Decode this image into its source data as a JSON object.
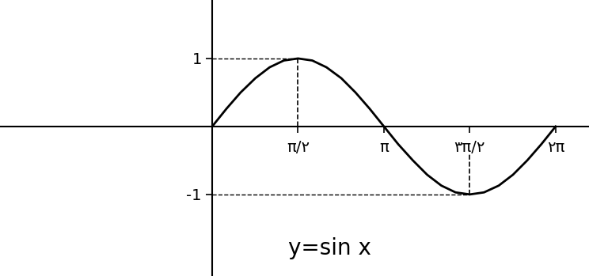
{
  "chart_data": {
    "type": "line",
    "annotation": "y=sin x",
    "x": [
      0,
      0.26,
      0.52,
      0.79,
      1.05,
      1.31,
      1.57,
      1.83,
      2.09,
      2.36,
      2.62,
      2.88,
      3.14,
      3.4,
      3.67,
      3.93,
      4.19,
      4.45,
      4.71,
      4.97,
      5.24,
      5.5,
      5.76,
      6.02,
      6.28
    ],
    "values": [
      0,
      0.26,
      0.5,
      0.71,
      0.87,
      0.97,
      1,
      0.97,
      0.87,
      0.71,
      0.5,
      0.26,
      0,
      -0.26,
      -0.5,
      -0.71,
      -0.87,
      -0.97,
      -1,
      -0.97,
      -0.87,
      -0.71,
      -0.5,
      -0.26,
      0
    ],
    "color": "#000000",
    "xlim": [
      -3.88,
      6.89
    ],
    "ylim": [
      -2.2,
      1.86
    ],
    "xticks": [
      {
        "value": 1.57,
        "label": "π/۲"
      },
      {
        "value": 3.14,
        "label": "π"
      },
      {
        "value": 4.71,
        "label": "۳π/۲"
      },
      {
        "value": 6.28,
        "label": "۲π"
      }
    ],
    "yticks": [
      1,
      -1
    ],
    "grid": false
  }
}
